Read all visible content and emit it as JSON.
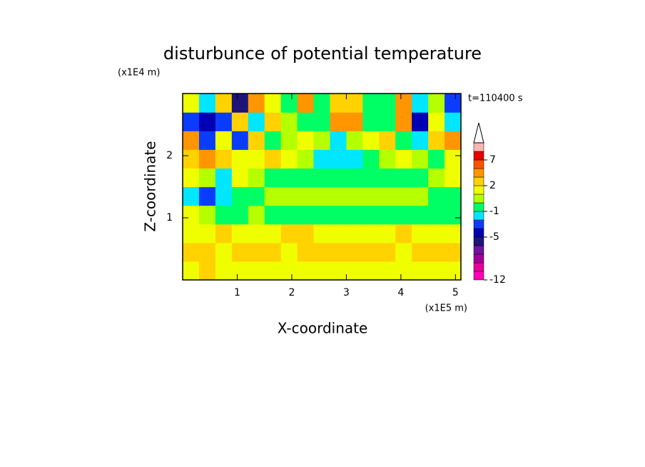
{
  "chart_data": {
    "type": "contour",
    "title": "disturbunce of potential temperature",
    "xlabel": "X-coordinate",
    "ylabel": "Z-coordinate",
    "x_unit": "(x1E5 m)",
    "y_unit": "(x1E4 m)",
    "annotation": "t=110400 s",
    "xlim": [
      0,
      5.1
    ],
    "ylim": [
      0,
      3
    ],
    "xticks": [
      1,
      2,
      3,
      4,
      5
    ],
    "yticks": [
      1,
      2
    ],
    "x": [
      0.15,
      0.45,
      0.75,
      1.05,
      1.35,
      1.65,
      1.95,
      2.25,
      2.55,
      2.85,
      3.15,
      3.45,
      3.75,
      4.05,
      4.35,
      4.65,
      4.95
    ],
    "y": [
      0.15,
      0.45,
      0.75,
      1.05,
      1.35,
      1.65,
      1.95,
      2.25,
      2.55,
      2.85
    ],
    "z": [
      [
        1.5,
        2.5,
        1.5,
        1.5,
        1.5,
        1.5,
        1.5,
        1.5,
        1.5,
        1.5,
        1.5,
        1.5,
        1.5,
        1.5,
        1.5,
        1.5,
        1.5
      ],
      [
        2.5,
        2.5,
        1.5,
        2.5,
        2.5,
        2.5,
        1.5,
        2.5,
        2.5,
        2.5,
        2.5,
        2.5,
        2.5,
        1.5,
        2.5,
        2.5,
        2.5
      ],
      [
        1.5,
        1.5,
        2.5,
        1.5,
        1.5,
        1.5,
        2.5,
        2.5,
        1.5,
        1.5,
        1.5,
        1.5,
        1.5,
        2.5,
        1.5,
        1.5,
        1.5
      ],
      [
        1.5,
        0.5,
        -0.5,
        -0.5,
        0.5,
        -0.5,
        -0.5,
        -0.5,
        -0.5,
        -0.5,
        -0.5,
        -0.5,
        -0.5,
        -0.5,
        -0.5,
        -0.5,
        -0.5
      ],
      [
        -1.5,
        -3,
        -1.5,
        -0.5,
        -0.5,
        0.5,
        0.5,
        0.5,
        0.5,
        0.5,
        0.5,
        0.5,
        0.5,
        0.5,
        0.5,
        -0.5,
        -0.5
      ],
      [
        1.5,
        0.5,
        -1.5,
        1.5,
        0.5,
        -0.5,
        -0.5,
        -0.5,
        -0.5,
        -0.5,
        -0.5,
        -0.5,
        -0.5,
        -0.5,
        -0.5,
        0.5,
        1.5
      ],
      [
        2.5,
        4,
        2.5,
        1.5,
        1.5,
        2.5,
        1.5,
        0.5,
        -1.5,
        -1.5,
        -1.5,
        -0.5,
        0.5,
        1.5,
        0.5,
        -0.5,
        1.5
      ],
      [
        4,
        -3,
        1.5,
        -3,
        2.5,
        -0.5,
        0.5,
        1.5,
        0.5,
        -1.5,
        0.5,
        1.5,
        2.5,
        -0.5,
        -1.5,
        2.5,
        4
      ],
      [
        -3,
        -4.5,
        -3,
        2.5,
        -1.5,
        2.5,
        0.5,
        -0.5,
        -0.5,
        4,
        4,
        -0.5,
        -0.5,
        4,
        -4.5,
        1.5,
        -1.5
      ],
      [
        1.5,
        -1.5,
        2.5,
        -5.5,
        4,
        1.5,
        -0.5,
        4,
        -0.5,
        2.5,
        2.5,
        -0.5,
        -0.5,
        4,
        -1.5,
        0.5,
        -3
      ]
    ],
    "levels": [
      -12,
      -10,
      -8,
      -7,
      -6,
      -5,
      -4,
      -2,
      -1,
      0,
      1,
      2,
      3,
      5,
      7,
      9,
      11
    ],
    "colors": [
      "#ff00b4",
      "#e6009b",
      "#a0009b",
      "#6e14a0",
      "#1e1478",
      "#0000b4",
      "#0a3cff",
      "#00e6ff",
      "#00ff64",
      "#b4ff00",
      "#f0ff00",
      "#ffd200",
      "#ff9600",
      "#ff5000",
      "#e60000",
      "#ffb4b4"
    ],
    "colorbar_ticks": [
      -12,
      -5,
      -1,
      2,
      7
    ]
  }
}
